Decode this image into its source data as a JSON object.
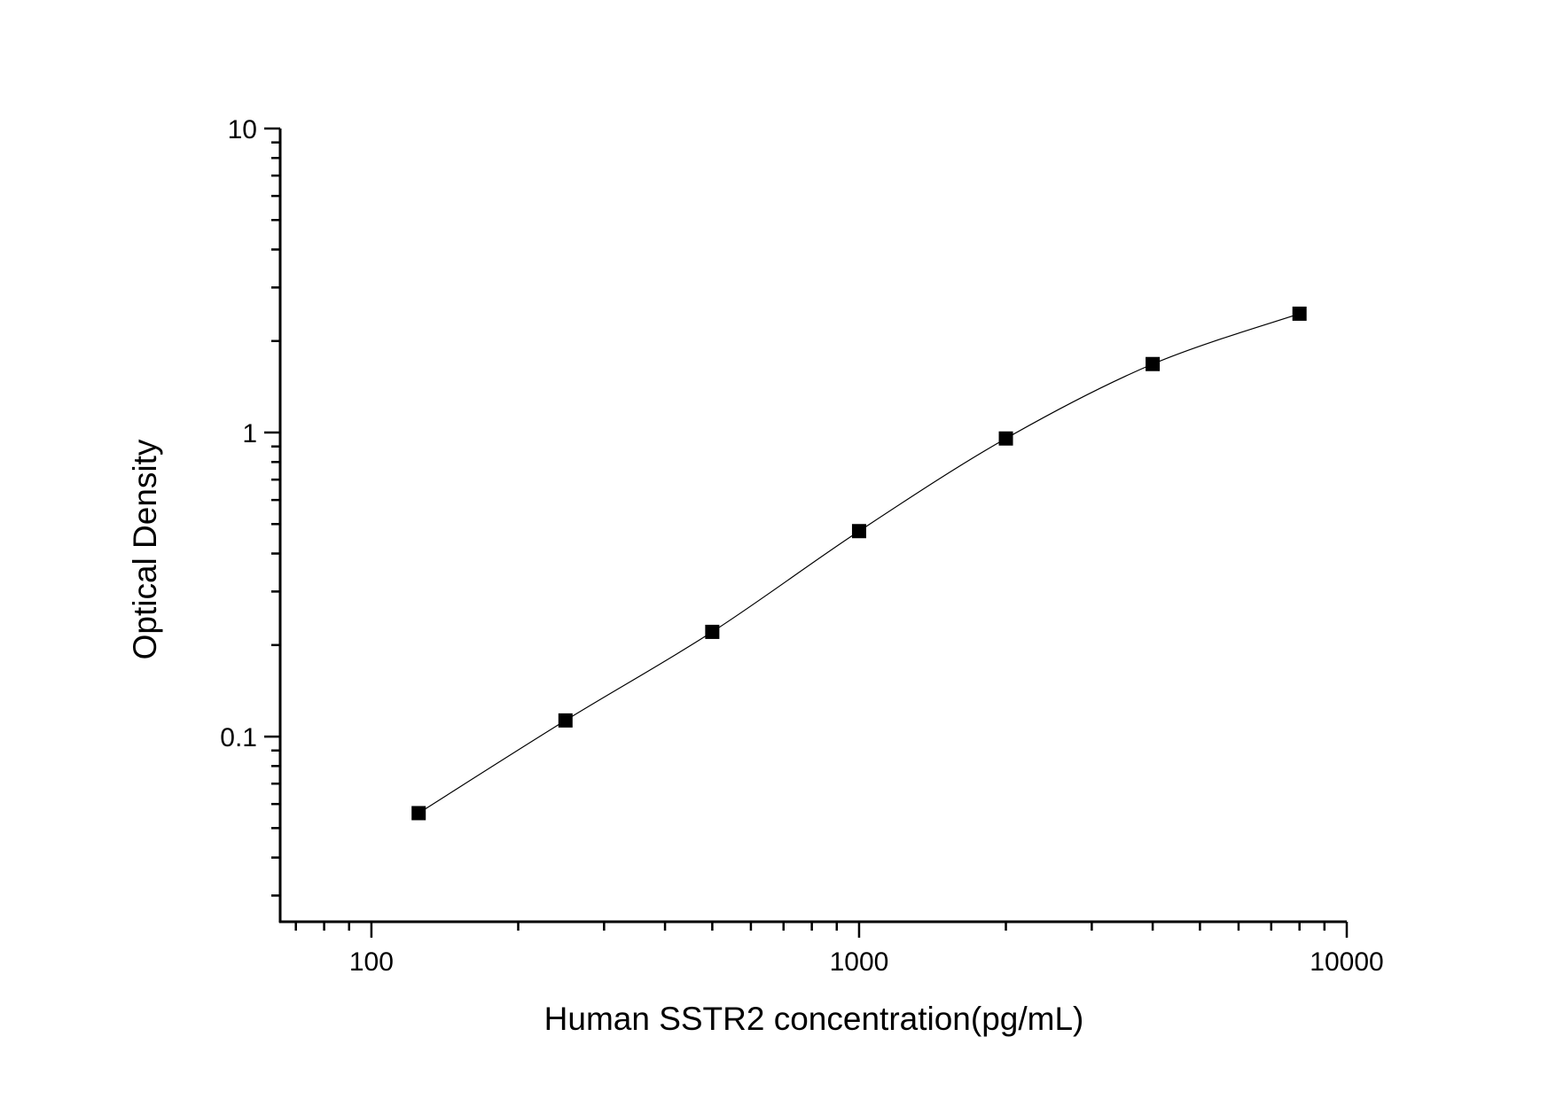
{
  "chart_data": {
    "type": "scatter",
    "title": "",
    "xlabel": "Human SSTR2 concentration(pg/mL)",
    "ylabel": "Optical Density",
    "x_scale": "log",
    "y_scale": "log",
    "xlim": [
      65,
      10000
    ],
    "ylim": [
      0.0246,
      10
    ],
    "x_ticks": [
      100,
      1000,
      10000
    ],
    "x_tick_labels": [
      "100",
      "1000",
      "10000"
    ],
    "y_ticks": [
      0.1,
      1,
      10
    ],
    "y_tick_labels": [
      "0.1",
      "1",
      "10"
    ],
    "grid": false,
    "legend": "none",
    "marker": "square",
    "fit_curve": true,
    "color": "#000000",
    "series": [
      {
        "x": [
          125,
          250,
          500,
          1000,
          2000,
          4000,
          8000
        ],
        "y": [
          0.056,
          0.113,
          0.221,
          0.474,
          0.956,
          1.68,
          2.46
        ]
      }
    ]
  }
}
